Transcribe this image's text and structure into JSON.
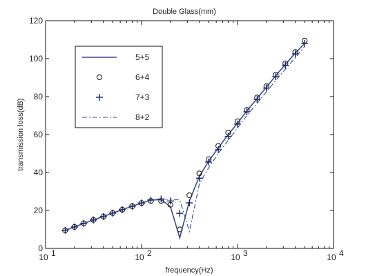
{
  "chart_data": {
    "type": "line",
    "title": "Double Glass(mm)",
    "xlabel": "frequency(Hz)",
    "ylabel": "transmission loss(dB)",
    "xscale": "log",
    "xlim": [
      10,
      10000
    ],
    "ylim": [
      0,
      120
    ],
    "x_ticks": [
      {
        "value": 10,
        "label": "10",
        "sup": "1"
      },
      {
        "value": 100,
        "label": "10",
        "sup": "2"
      },
      {
        "value": 1000,
        "label": "10",
        "sup": "3"
      },
      {
        "value": 10000,
        "label": "10",
        "sup": "4"
      }
    ],
    "y_ticks": [
      0,
      20,
      40,
      60,
      80,
      100,
      120
    ],
    "grid": false,
    "legend_position": "top-left",
    "x": [
      16,
      20,
      25,
      31.5,
      40,
      50,
      63,
      80,
      100,
      125,
      160,
      200,
      250,
      315,
      400,
      500,
      630,
      800,
      1000,
      1250,
      1600,
      2000,
      2500,
      3150,
      4000,
      5000
    ],
    "series": [
      {
        "name": "5+5",
        "style": "solid",
        "color": "#3a4a8a",
        "values": [
          9.5,
          11.3,
          13.2,
          15.0,
          16.8,
          18.6,
          20.4,
          22.2,
          23.9,
          25.5,
          25.7,
          22.0,
          5.5,
          25.0,
          38.0,
          46.0,
          53.0,
          60.0,
          66.0,
          72.5,
          79.0,
          85.0,
          91.0,
          97.0,
          103.0,
          108.0
        ]
      },
      {
        "name": "6+4",
        "style": "circle",
        "color": "#222222",
        "values": [
          9.5,
          11.3,
          13.2,
          15.0,
          16.8,
          18.6,
          20.4,
          22.2,
          23.9,
          25.0,
          25.0,
          23.0,
          10.0,
          28.0,
          39.5,
          47.0,
          54.0,
          61.0,
          67.0,
          73.0,
          79.5,
          85.5,
          91.5,
          97.5,
          103.5,
          109.5
        ]
      },
      {
        "name": "7+3",
        "style": "plus",
        "color": "#1a2266",
        "values": [
          9.5,
          11.3,
          13.2,
          15.0,
          16.8,
          18.6,
          20.4,
          22.2,
          23.9,
          25.5,
          26.0,
          25.0,
          18.5,
          24.0,
          37.0,
          45.5,
          52.0,
          59.0,
          65.5,
          72.0,
          78.5,
          84.5,
          90.5,
          96.5,
          102.5,
          108.0
        ]
      },
      {
        "name": "8+2",
        "style": "dashdot",
        "color": "#3a4a8a",
        "values": [
          9.5,
          11.3,
          13.2,
          15.0,
          16.8,
          18.6,
          20.4,
          22.2,
          23.9,
          25.5,
          26.0,
          26.0,
          25.5,
          9.0,
          34.0,
          42.5,
          50.0,
          57.0,
          63.5,
          70.0,
          76.5,
          82.5,
          88.5,
          94.5,
          100.5,
          106.5
        ]
      }
    ]
  }
}
